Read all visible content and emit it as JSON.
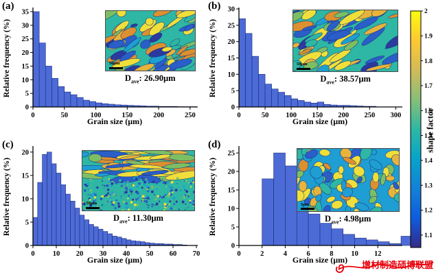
{
  "figure": {
    "watermark": "增材制造硕博联盟",
    "watermark_color": "#e8000b",
    "background": "#ffffff",
    "bar_fill": "#4d6bd6",
    "bar_edge": "#1b2a7a"
  },
  "colorbar": {
    "label": "shape factor",
    "min": 1.05,
    "max": 2.0,
    "ticks": [
      2,
      1.9,
      1.8,
      1.7,
      1.6,
      1.5,
      1.4,
      1.3,
      1.2,
      1.1
    ],
    "gradient": [
      "#352a87",
      "#0f5cdd",
      "#1481d6",
      "#06a4ca",
      "#2eb7a4",
      "#87bf77",
      "#d1bb59",
      "#fec832",
      "#f9fb0e"
    ]
  },
  "chart_data": [
    {
      "type": "bar",
      "panel_label": "(a)",
      "xlabel": "Grain size (µm)",
      "ylabel": "Relative frequency (%)",
      "xlim": [
        0,
        260
      ],
      "ylim": [
        0,
        36
      ],
      "xticks": [
        0,
        50,
        100,
        150,
        200,
        250
      ],
      "yticks": [
        0,
        5,
        10,
        15,
        20,
        25,
        30,
        35
      ],
      "bin_start": 0,
      "bin_width": 10,
      "values": [
        35,
        23.5,
        15,
        10.5,
        7.5,
        5.5,
        4.5,
        3.5,
        2.5,
        2,
        1.5,
        1.2,
        1,
        0.8,
        0.7,
        0.6,
        0.5,
        0.4,
        0.3,
        0.3,
        0.2,
        0.2,
        0.2,
        0.1,
        0.1,
        0.1
      ],
      "dave": {
        "prefix": "D",
        "sub": "ave",
        "sep": ": ",
        "value": "26.90µm"
      },
      "inset": {
        "scalebar": "50µm",
        "style": "elongated",
        "seed": 7,
        "rect": {
          "x": 0.44,
          "y": 0.015,
          "w": 0.555,
          "h": 0.62
        }
      }
    },
    {
      "type": "bar",
      "panel_label": "(b)",
      "xlabel": "Grain size (µm)",
      "ylabel": "Relative frequency (%)",
      "xlim": [
        0,
        310
      ],
      "ylim": [
        0,
        30
      ],
      "xticks": [
        0,
        50,
        100,
        150,
        200,
        250,
        300
      ],
      "yticks": [
        0,
        5,
        10,
        15,
        20,
        25,
        30
      ],
      "bin_start": 0,
      "bin_width": 12.5,
      "values": [
        27,
        22.5,
        15.5,
        10,
        7,
        5.5,
        4.5,
        3.5,
        2.5,
        2,
        1.5,
        1.2,
        1.5,
        0.8,
        0.6,
        0.5,
        0.5,
        0.4,
        0.3,
        0.2,
        0.2
      ],
      "dave": {
        "prefix": "D",
        "sub": "ave",
        "sep": ": ",
        "value": "38.57µm"
      },
      "inset": {
        "scalebar": "50µm",
        "style": "elongated",
        "seed": 13,
        "rect": {
          "x": 0.33,
          "y": 0.01,
          "w": 0.655,
          "h": 0.63
        }
      }
    },
    {
      "type": "bar",
      "panel_label": "(c)",
      "xlabel": "Grain size (µm)",
      "ylabel": "Relative frequency (%)",
      "xlim": [
        0,
        70
      ],
      "ylim": [
        0,
        21
      ],
      "xticks": [
        0,
        10,
        20,
        30,
        40,
        50,
        60,
        70
      ],
      "yticks": [
        0,
        5,
        10,
        15,
        20
      ],
      "bin_start": 0,
      "bin_width": 2,
      "values": [
        6,
        13.5,
        19.5,
        20,
        17.5,
        15.5,
        13,
        11,
        9.5,
        8,
        6.5,
        5.5,
        4.5,
        4,
        3.5,
        3,
        2.5,
        2,
        1.8,
        1.5,
        1.2,
        1,
        0.9,
        0.8,
        0.6,
        0.5,
        0.4,
        0.4,
        0.3,
        0.3,
        0.2,
        0.2,
        0.1
      ],
      "dave": {
        "prefix": "D",
        "sub": "ave",
        "sep": ": ",
        "value": "11.30µm"
      },
      "inset": {
        "scalebar": "50µm",
        "style": "banded",
        "seed": 21,
        "rect": {
          "x": 0.3,
          "y": 0.03,
          "w": 0.69,
          "h": 0.62
        }
      }
    },
    {
      "type": "bar",
      "panel_label": "(d)",
      "xlabel": "Grain size (µm)",
      "ylabel": "Relative frequency (%)",
      "xlim": [
        0,
        14
      ],
      "ylim": [
        0,
        26.5
      ],
      "xticks": [
        0,
        2,
        4,
        6,
        8,
        10,
        12
      ],
      "yticks": [
        0,
        5,
        10,
        15,
        20,
        25
      ],
      "bin_start": 2,
      "bin_width": 1,
      "values": [
        18,
        25,
        21.5,
        13.5,
        8.5,
        6,
        4.5,
        3,
        2,
        1.5,
        1,
        0.5,
        2.5
      ],
      "dave": {
        "prefix": "D",
        "sub": "ave",
        "sep": ": ",
        "value": "4.98µm"
      },
      "inset": {
        "scalebar": "5µm",
        "style": "equiaxed",
        "seed": 42,
        "rect": {
          "x": 0.355,
          "y": 0.01,
          "w": 0.635,
          "h": 0.65
        }
      }
    }
  ]
}
